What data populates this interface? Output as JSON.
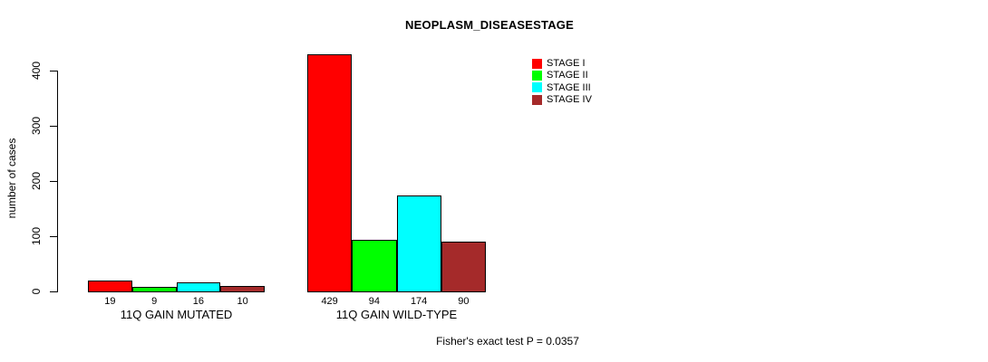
{
  "chart_data": {
    "type": "bar",
    "title": "NEOPLASM_DISEASESTAGE",
    "ylabel": "number of cases",
    "ylim": [
      0,
      400
    ],
    "yticks": [
      0,
      100,
      200,
      300,
      400
    ],
    "ytick_labels": [
      "0",
      "100",
      "200",
      "300",
      "400"
    ],
    "categories": [
      "11Q GAIN MUTATED",
      "11Q GAIN WILD-TYPE"
    ],
    "series": [
      {
        "name": "STAGE I",
        "color": "#FF0000",
        "values": [
          19,
          429
        ]
      },
      {
        "name": "STAGE II",
        "color": "#00FF00",
        "values": [
          9,
          94
        ]
      },
      {
        "name": "STAGE III",
        "color": "#00FFFF",
        "values": [
          16,
          174
        ]
      },
      {
        "name": "STAGE IV",
        "color": "#A52A2A",
        "values": [
          10,
          90
        ]
      }
    ],
    "bar_value_labels": [
      [
        "19",
        "9",
        "16",
        "10"
      ],
      [
        "429",
        "94",
        "174",
        "90"
      ]
    ],
    "legend_position": "top-right",
    "grid": false,
    "annotation": "Fisher's exact test P = 0.0357"
  }
}
